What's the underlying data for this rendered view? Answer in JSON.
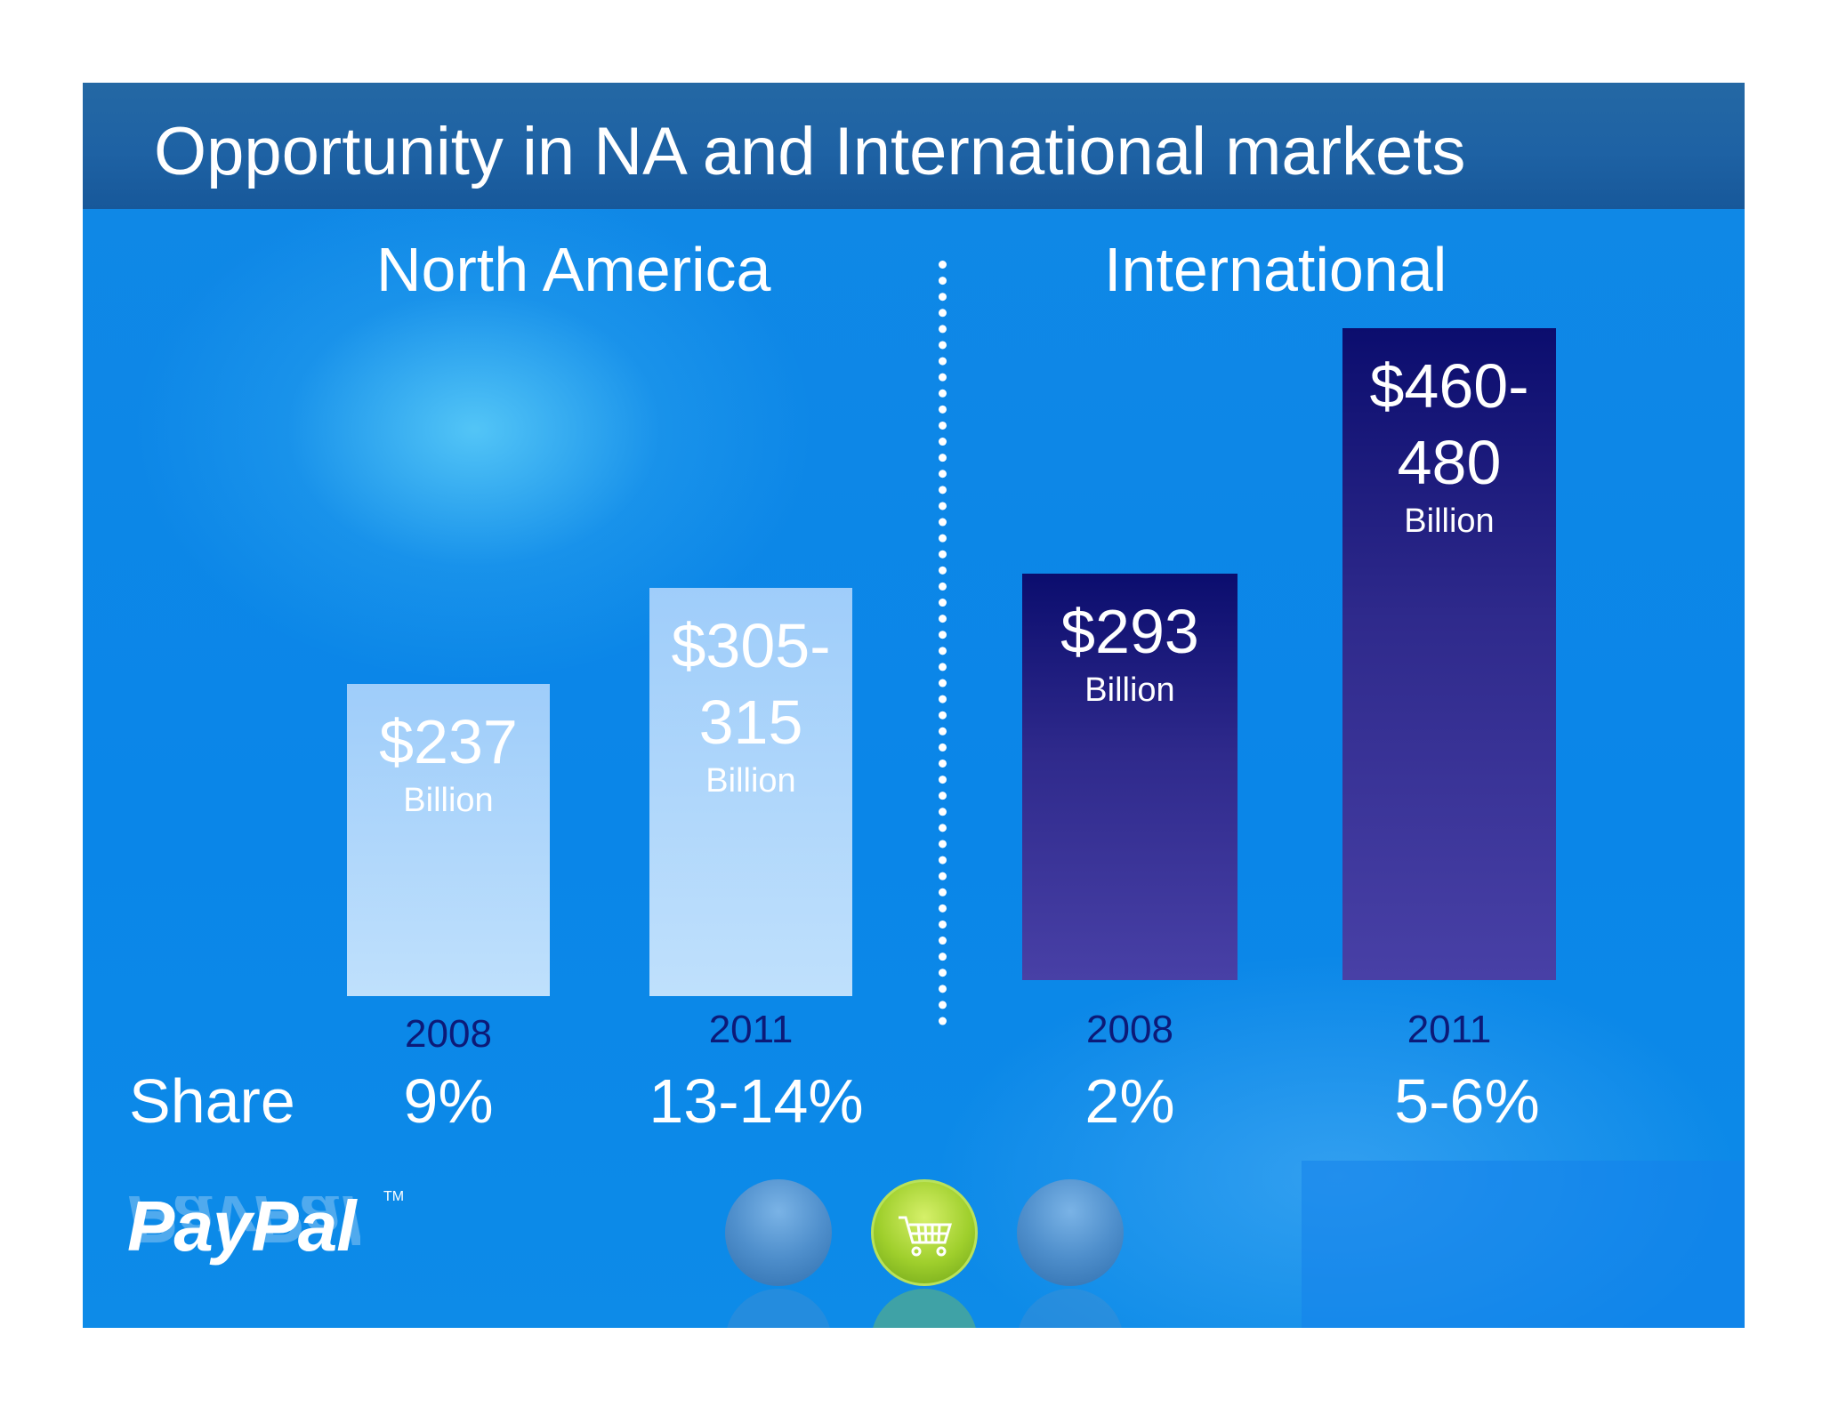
{
  "title": "Opportunity in NA and International markets",
  "regions": [
    {
      "heading": "North America",
      "bars": [
        {
          "value_label": "$237",
          "unit": "Billion",
          "year": "2008",
          "share": "9%"
        },
        {
          "value_label": "$305-\n315",
          "unit": "Billion",
          "year": "2011",
          "share": "13-14%"
        }
      ]
    },
    {
      "heading": "International",
      "bars": [
        {
          "value_label": "$293",
          "unit": "Billion",
          "year": "2008",
          "share": "2%"
        },
        {
          "value_label": "$460-\n480",
          "unit": "Billion",
          "year": "2011",
          "share": "5-6%"
        }
      ]
    }
  ],
  "share_label": "Share",
  "logo": {
    "text": "PayPal",
    "tm": "TM"
  },
  "icons": [
    "shopping-cart-icon"
  ],
  "colors": {
    "na_bar": "#a8d4fb",
    "intl_bar": "#1c1a7e",
    "year_text": "#0c1a78",
    "title_bar": "#1e62a4"
  },
  "chart_data": {
    "type": "bar",
    "title": "Opportunity in NA and International markets",
    "unit": "Billion",
    "groups": [
      {
        "name": "North America",
        "categories": [
          "2008",
          "2011"
        ],
        "values": [
          237,
          310
        ],
        "labels": [
          "$237",
          "$305-315"
        ],
        "share": [
          "9%",
          "13-14%"
        ]
      },
      {
        "name": "International",
        "categories": [
          "2008",
          "2011"
        ],
        "values": [
          293,
          470
        ],
        "labels": [
          "$293",
          "$460-480"
        ],
        "share": [
          "2%",
          "5-6%"
        ]
      }
    ],
    "grid": false
  }
}
